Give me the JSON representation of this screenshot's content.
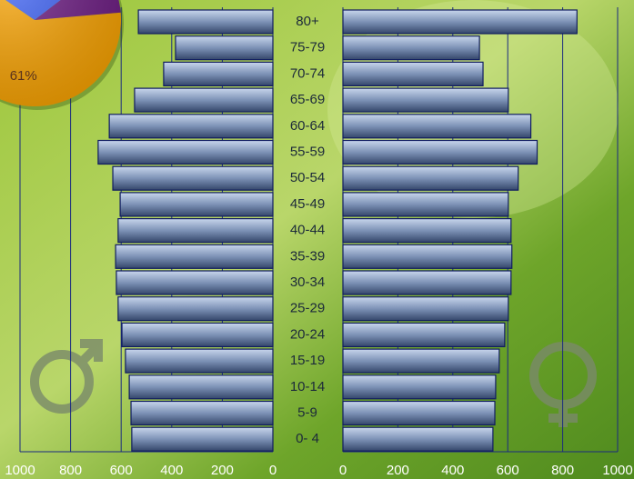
{
  "chart_data": [
    {
      "type": "pyramid",
      "categories": [
        "80+",
        "75-79",
        "70-74",
        "65-69",
        "60-64",
        "55-59",
        "50-54",
        "45-49",
        "40-44",
        "35-39",
        "30-34",
        "25-29",
        "20-24",
        "15-19",
        "10-14",
        "5-9",
        "0- 4"
      ],
      "series": [
        {
          "color": "#5a6e94",
          "values": [
            532,
            385,
            432,
            547,
            647,
            691,
            633,
            604,
            612,
            622,
            619,
            612,
            597,
            583,
            568,
            561,
            558
          ]
        },
        {
          "color": "#5a6e94",
          "values": [
            852,
            497,
            510,
            602,
            684,
            707,
            638,
            602,
            612,
            615,
            612,
            602,
            589,
            569,
            556,
            553,
            546
          ]
        }
      ],
      "xlim": [
        0,
        1000
      ],
      "xticks": [
        0,
        200,
        400,
        600,
        800,
        1000
      ],
      "grid": true
    },
    {
      "type": "pie",
      "values": [
        61,
        30,
        9
      ],
      "value_labels": [
        "61%",
        null,
        null
      ],
      "colors": [
        "#f5a000",
        "#3a5ef0",
        "#6a1a80"
      ]
    }
  ]
}
